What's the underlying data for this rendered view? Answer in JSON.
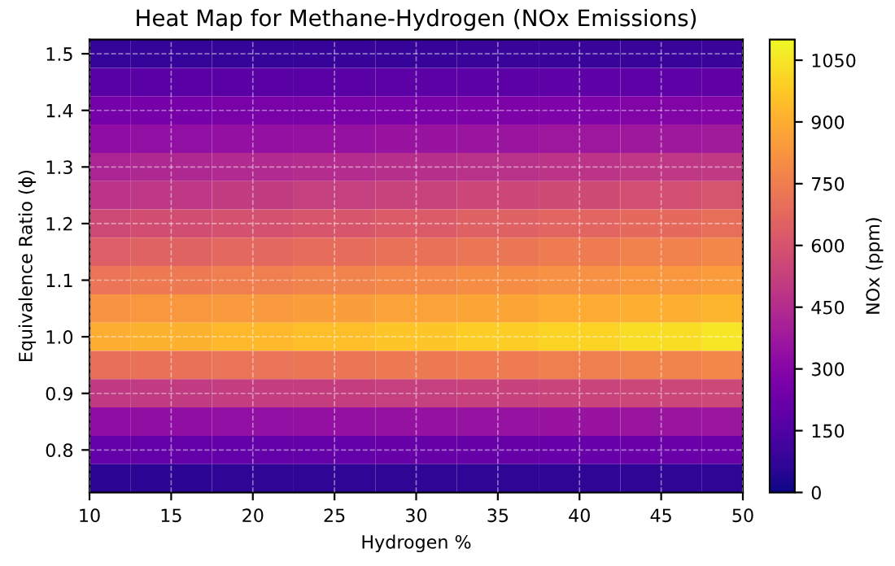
{
  "chart_data": {
    "type": "heatmap",
    "title": "Heat Map for Methane-Hydrogen (NOx Emissions)",
    "xlabel": "Hydrogen %",
    "ylabel": "Equivalence Ratio (ϕ)",
    "clabel": "NOx (ppm)",
    "x": [
      10,
      15,
      20,
      25,
      30,
      35,
      40,
      45,
      50
    ],
    "y_categories": [
      "1.5",
      null,
      "1.4",
      null,
      "1.3",
      null,
      "1.2",
      null,
      "1.1",
      null,
      "1.0",
      null,
      "0.9",
      null,
      "0.8",
      null
    ],
    "cells": [
      [
        80,
        80,
        80,
        82,
        84,
        86,
        88,
        90,
        92
      ],
      [
        170,
        172,
        174,
        176,
        178,
        182,
        185,
        188,
        190
      ],
      [
        250,
        254,
        258,
        262,
        266,
        272,
        278,
        284,
        290
      ],
      [
        330,
        336,
        342,
        348,
        354,
        360,
        366,
        373,
        380
      ],
      [
        420,
        430,
        440,
        450,
        460,
        470,
        480,
        490,
        500
      ],
      [
        480,
        494,
        508,
        522,
        536,
        550,
        565,
        582,
        600
      ],
      [
        560,
        576,
        592,
        610,
        628,
        645,
        662,
        680,
        700
      ],
      [
        640,
        656,
        672,
        690,
        708,
        725,
        744,
        762,
        780
      ],
      [
        720,
        736,
        752,
        768,
        784,
        800,
        816,
        832,
        850
      ],
      [
        820,
        830,
        840,
        852,
        864,
        876,
        890,
        905,
        920
      ],
      [
        900,
        915,
        930,
        948,
        966,
        985,
        1005,
        1025,
        1050
      ],
      [
        700,
        708,
        716,
        726,
        736,
        746,
        756,
        768,
        780
      ],
      [
        500,
        506,
        512,
        518,
        524,
        532,
        540,
        548,
        556
      ],
      [
        330,
        334,
        338,
        342,
        346,
        350,
        355,
        360,
        365
      ],
      [
        200,
        202,
        204,
        206,
        208,
        210,
        213,
        216,
        220
      ],
      [
        60,
        60,
        62,
        62,
        64,
        64,
        66,
        66,
        68
      ]
    ],
    "clim": [
      0,
      1100
    ],
    "cticks": [
      0,
      150,
      300,
      450,
      600,
      750,
      900,
      1050
    ],
    "xlim": [
      10,
      50
    ],
    "xticks": [
      10,
      15,
      20,
      25,
      30,
      35,
      40,
      45,
      50
    ],
    "grid": true
  }
}
